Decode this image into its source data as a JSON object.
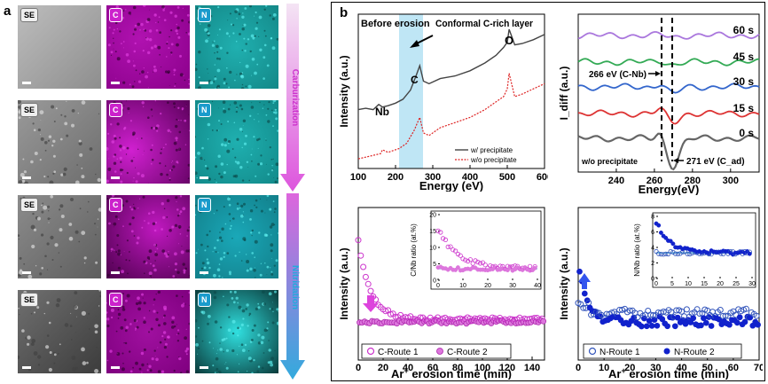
{
  "panel_a": {
    "letter": "a",
    "badges": {
      "se": "SE",
      "c": "C",
      "n": "N"
    },
    "process_labels": {
      "carburization": "Carburization",
      "nitridation": "Nitridation"
    },
    "colors": {
      "carburization": "#dd55dd",
      "nitridation": "#33aadd",
      "c_map": "#a000a0",
      "n_map": "#1aa5a5"
    }
  },
  "panel_b": {
    "letter": "b"
  },
  "chart_data": [
    {
      "type": "line",
      "title": "",
      "xlabel": "Energy (eV)",
      "ylabel": "Intensity (a.u.)",
      "xlim": [
        100,
        600
      ],
      "xticks": [
        "100",
        "200",
        "300",
        "400",
        "500",
        "600"
      ],
      "annotations": [
        "Before erosion",
        "Conformal C-rich layer",
        "Nb",
        "C",
        "O"
      ],
      "highlight_region": [
        218,
        275
      ],
      "series": [
        {
          "name": "w/ precipitate",
          "color": "#444444",
          "x": [
            100,
            120,
            140,
            155,
            165,
            180,
            200,
            220,
            240,
            255,
            265,
            275,
            290,
            320,
            360,
            400,
            440,
            470,
            490,
            500,
            505,
            510,
            520,
            540,
            570,
            600
          ],
          "y": [
            0.4,
            0.41,
            0.4,
            0.44,
            0.42,
            0.43,
            0.45,
            0.48,
            0.55,
            0.66,
            0.74,
            0.62,
            0.6,
            0.64,
            0.66,
            0.7,
            0.76,
            0.82,
            0.88,
            0.92,
            1.02,
            0.98,
            0.9,
            0.91,
            0.94,
            0.98
          ]
        },
        {
          "name": "w/o precipitate",
          "color": "#dd2222",
          "x": [
            100,
            130,
            160,
            165,
            180,
            210,
            230,
            250,
            265,
            275,
            290,
            320,
            360,
            400,
            440,
            470,
            490,
            500,
            505,
            510,
            520,
            540,
            570,
            600
          ],
          "y": [
            0.02,
            0.04,
            0.06,
            0.09,
            0.07,
            0.1,
            0.14,
            0.24,
            0.34,
            0.22,
            0.2,
            0.26,
            0.3,
            0.34,
            0.4,
            0.46,
            0.5,
            0.56,
            0.68,
            0.62,
            0.5,
            0.52,
            0.56,
            0.6
          ]
        }
      ]
    },
    {
      "type": "line",
      "xlabel": "Energy(eV)",
      "ylabel": "I_diff (a.u.)",
      "xlim": [
        220,
        315
      ],
      "xticks": [
        "240",
        "260",
        "280",
        "300"
      ],
      "annotations": [
        "266 eV (C-Nb)",
        "271 eV (C_ad)",
        "w/o precipitate"
      ],
      "series": [
        {
          "name": "60 s",
          "color": "#aa77dd"
        },
        {
          "name": "45 s",
          "color": "#33aa55"
        },
        {
          "name": "30 s",
          "color": "#3366cc"
        },
        {
          "name": "15 s",
          "color": "#dd3333"
        },
        {
          "name": "0 s",
          "color": "#666666"
        }
      ]
    },
    {
      "type": "scatter",
      "xlabel": "Ar+ erosion time (min)",
      "ylabel": "Intensity (a.u.)",
      "xlim": [
        0,
        150
      ],
      "xticks": [
        "0",
        "20",
        "40",
        "60",
        "80",
        "100",
        "120",
        "140"
      ],
      "series": [
        {
          "name": "C-Route 1",
          "color": "#cc33cc",
          "marker": "open"
        },
        {
          "name": "C-Route 2",
          "color": "#cc33cc",
          "marker": "filled"
        }
      ],
      "inset": {
        "ylabel": "C/Nb ratio (at.%)",
        "xlim": [
          0,
          40
        ],
        "ylim": [
          0,
          20
        ],
        "xticks": [
          "0",
          "10",
          "20",
          "30",
          "40"
        ],
        "yticks": [
          "0",
          "5",
          "10",
          "15",
          "20"
        ]
      }
    },
    {
      "type": "scatter",
      "xlabel": "Ar+ erosion time (min)",
      "ylabel": "Intensity (a.u.)",
      "xlim": [
        0,
        70
      ],
      "xticks": [
        "0",
        "10",
        "20",
        "30",
        "40",
        "50",
        "60",
        "70"
      ],
      "series": [
        {
          "name": "N-Route 1",
          "color": "#3355bb",
          "marker": "open"
        },
        {
          "name": "N-Route 2",
          "color": "#1122cc",
          "marker": "filled"
        }
      ],
      "inset": {
        "ylabel": "N/Nb ratio (at.%)",
        "xlim": [
          0,
          30
        ],
        "ylim": [
          0,
          8
        ],
        "xticks": [
          "0",
          "5",
          "10",
          "15",
          "20",
          "25",
          "30"
        ],
        "yticks": [
          "0",
          "2",
          "4",
          "6",
          "8"
        ]
      }
    }
  ]
}
